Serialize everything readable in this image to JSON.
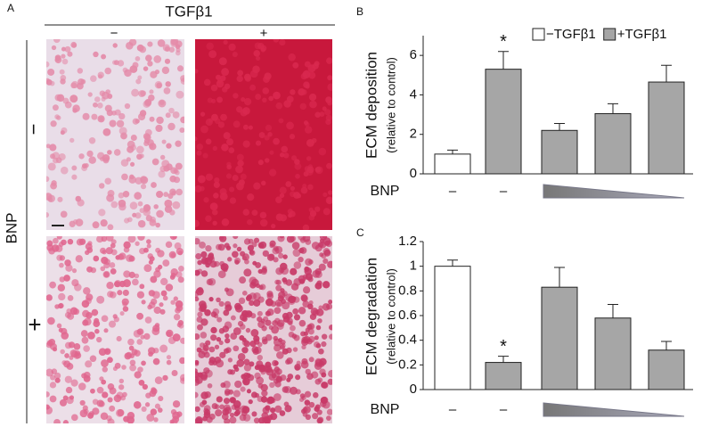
{
  "panel_a": {
    "label": "A",
    "column_header": "TGFβ1",
    "columns": [
      "−",
      "+"
    ],
    "row_header": "BNP",
    "rows": [
      "−",
      "+"
    ]
  },
  "chart_data": [
    {
      "type": "bar",
      "panel": "B",
      "ylabel": "ECM deposition",
      "ylabel_sub": "(relative to control)",
      "xlabel": "BNP",
      "categories": [
        "–",
        "–",
        null,
        null,
        null
      ],
      "series": [
        {
          "name": "−TGFβ1",
          "color": "#ffffff",
          "values": [
            1.0,
            null,
            null,
            null,
            null
          ],
          "errors": [
            0.2,
            null,
            null,
            null,
            null
          ]
        },
        {
          "name": "+TGFβ1",
          "color": "#a6a6a6",
          "values": [
            null,
            5.3,
            2.2,
            3.05,
            4.65
          ],
          "errors": [
            null,
            0.9,
            0.35,
            0.5,
            0.85
          ]
        }
      ],
      "annotations": [
        {
          "category": 1,
          "text": "*"
        }
      ],
      "ylim": [
        0,
        7
      ],
      "yticks": [
        0,
        2,
        4,
        6
      ],
      "legend": "top-right"
    },
    {
      "type": "bar",
      "panel": "C",
      "ylabel": "ECM degradation",
      "ylabel_sub": "(relative to control)",
      "xlabel": "BNP",
      "categories": [
        "–",
        "–",
        null,
        null,
        null
      ],
      "series": [
        {
          "name": "−TGFβ1",
          "color": "#ffffff",
          "values": [
            1.0,
            null,
            null,
            null,
            null
          ],
          "errors": [
            0.05,
            null,
            null,
            null,
            null
          ]
        },
        {
          "name": "+TGFβ1",
          "color": "#a6a6a6",
          "values": [
            null,
            0.22,
            0.83,
            0.58,
            0.32
          ],
          "errors": [
            null,
            0.05,
            0.16,
            0.11,
            0.07
          ]
        }
      ],
      "annotations": [
        {
          "category": 1,
          "text": "*"
        }
      ],
      "ylim": [
        0,
        1.2
      ],
      "yticks": [
        0,
        0.2,
        0.4,
        0.6,
        0.8,
        1,
        1.2
      ],
      "legend": "none"
    }
  ]
}
